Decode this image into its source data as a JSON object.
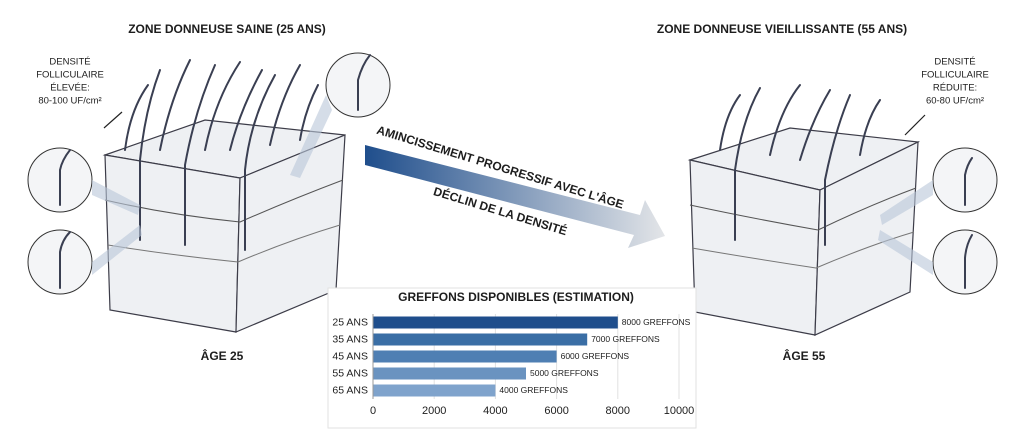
{
  "labels": {
    "left_title": "ZONE DONNEUSE SAINE (25 ANS)",
    "right_title": "ZONE DONNEUSE VIEILLISSANTE (55 ANS)",
    "left_note": [
      "DENSITÉ",
      "FOLLICULAIRE",
      "ÉLEVÉE:",
      "80-100 UF/cm²"
    ],
    "right_note": [
      "DENSITÉ",
      "FOLLICULAIRE",
      "RÉDUITE:",
      "60-80 UF/cm²"
    ],
    "arrow_top": "AMINCISSEMENT PROGRESSIF AVEC L'ÂGE",
    "arrow_bottom": "DÉCLIN DE LA DENSITÉ",
    "left_age": "ÂGE 25",
    "right_age": "ÂGE 55"
  },
  "chart_data": {
    "type": "hbar",
    "title": "GREFFONS DISPONIBLES (ESTIMATION)",
    "categories": [
      "25 ANS",
      "35 ANS",
      "45 ANS",
      "55 ANS",
      "65 ANS"
    ],
    "values": [
      8000,
      7000,
      6000,
      5000,
      4000
    ],
    "value_labels": [
      "8000 GREFFONS",
      "7000 GREFFONS",
      "6000 GREFFONS",
      "5000 GREFFONS",
      "4000 GREFFONS"
    ],
    "colors": [
      "#1f4e8c",
      "#3a6ea5",
      "#4f7fb3",
      "#6a93c0",
      "#7fa3cc"
    ],
    "xlim": [
      0,
      10000
    ],
    "xticks": [
      0,
      2000,
      4000,
      6000,
      8000,
      10000
    ],
    "grid": true
  }
}
